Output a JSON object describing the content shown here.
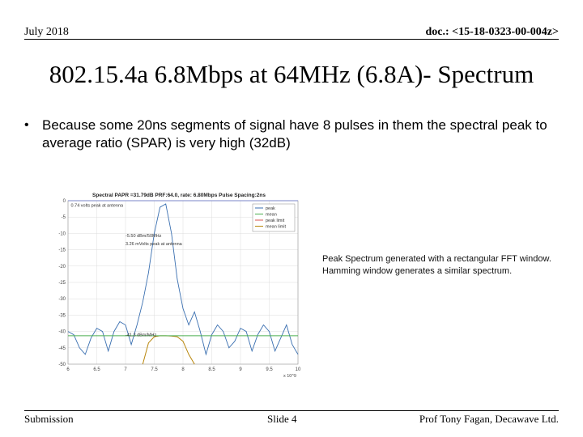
{
  "header": {
    "date": "July 2018",
    "doc_id": "doc.: <15-18-0323-00-004z>"
  },
  "title": "802.15.4a 6.8Mbps at 64MHz (6.8A)- Spectrum",
  "bullet": {
    "marker": "•",
    "text": "Because some 20ns segments of signal have 8 pulses in them the spectral peak to average ratio (SPAR) is very high (32dB)"
  },
  "caption": "Peak Spectrum generated with a rectangular FFT window. Hamming window generates a similar spectrum.",
  "footer": {
    "left": "Submission",
    "center": "Slide 4",
    "right": "Prof Tony Fagan,  Decawave Ltd."
  },
  "colors": {
    "peak": "#3a6fb0",
    "mean": "#4caf50",
    "peak_limit": "#d9534f",
    "mean_limit": "#b8860b",
    "peak_limit_line": "#7a86c8"
  },
  "chart_data": {
    "type": "line",
    "title": "Spectral PAPR =31.79dB PRF:64.0, rate: 6.80Mbps Pulse Spacing:2ns",
    "xlim": [
      6,
      10
    ],
    "ylim": [
      -50,
      0
    ],
    "x_ticks": [
      "6",
      "6.5",
      "7",
      "7.5",
      "8",
      "8.5",
      "9",
      "9.5",
      "10"
    ],
    "x_tick_values": [
      6,
      6.5,
      7,
      7.5,
      8,
      8.5,
      9,
      9.5,
      10
    ],
    "x_multiplier": "x 10^9",
    "y_ticks": [
      "0",
      "-5",
      "-10",
      "-15",
      "-20",
      "-25",
      "-30",
      "-35",
      "-40",
      "-45",
      "-50"
    ],
    "y_tick_values": [
      0,
      -5,
      -10,
      -15,
      -20,
      -25,
      -30,
      -35,
      -40,
      -45,
      -50
    ],
    "grid": true,
    "legend_position": "top-right",
    "legend": [
      "peak",
      "mean",
      "peak limit",
      "mean limit"
    ],
    "annotations": [
      {
        "text": "0.74 volts peak at antenna",
        "x": 6.05,
        "y": -1.8
      },
      {
        "text": "-5.50 dBm/50MHz",
        "x": 7.0,
        "y": -11.2
      },
      {
        "text": "3.26 mVolts peak at antenna",
        "x": 7.0,
        "y": -13.6
      },
      {
        "text": "-41.3 dBm/MHz",
        "x": 7.0,
        "y": -41.5
      }
    ],
    "series": [
      {
        "name": "peak",
        "x": [
          6.0,
          6.1,
          6.2,
          6.3,
          6.4,
          6.5,
          6.6,
          6.7,
          6.8,
          6.9,
          7.0,
          7.1,
          7.2,
          7.3,
          7.4,
          7.5,
          7.6,
          7.7,
          7.8,
          7.9,
          8.0,
          8.1,
          8.2,
          8.3,
          8.4,
          8.5,
          8.6,
          8.7,
          8.8,
          8.9,
          9.0,
          9.1,
          9.2,
          9.3,
          9.4,
          9.5,
          9.6,
          9.7,
          9.8,
          9.9,
          10.0
        ],
        "y": [
          -40,
          -41,
          -45,
          -47,
          -42,
          -39,
          -40,
          -46,
          -40,
          -37,
          -38,
          -44,
          -38,
          -31,
          -22,
          -10,
          -2,
          -1,
          -10,
          -24,
          -33,
          -38,
          -34,
          -40,
          -47,
          -41,
          -38,
          -40,
          -45,
          -43,
          -39,
          -40,
          -46,
          -41,
          -38,
          -40,
          -46,
          -42,
          -38,
          -44,
          -47
        ]
      },
      {
        "name": "mean",
        "x": [
          7.3,
          7.4,
          7.5,
          7.6,
          7.7,
          7.8,
          7.9,
          8.0,
          8.1,
          8.2
        ],
        "y": [
          -50,
          -43.5,
          -41.6,
          -41.3,
          -41.3,
          -41.4,
          -41.6,
          -43,
          -47,
          -50
        ]
      },
      {
        "name": "peak limit",
        "x": [
          6,
          10
        ],
        "y": [
          0,
          0
        ]
      },
      {
        "name": "mean limit",
        "x": [
          6,
          10
        ],
        "y": [
          -41.3,
          -41.3
        ]
      }
    ]
  }
}
